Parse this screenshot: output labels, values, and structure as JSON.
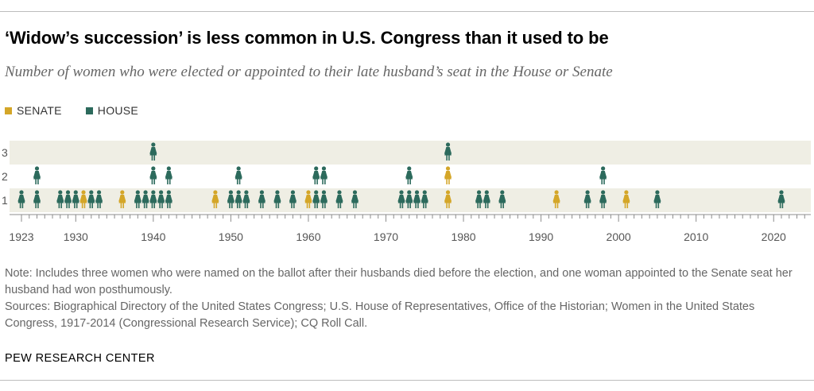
{
  "title": "‘Widow’s succession’ is less common in U.S. Congress than it used to be",
  "subtitle": "Number of women who were elected or appointed to their late husband’s seat in the House or Senate",
  "legend": {
    "senate": {
      "label": "SENATE",
      "color": "#d4a628"
    },
    "house": {
      "label": "HOUSE",
      "color": "#2c6a5c"
    }
  },
  "chart_data": {
    "type": "scatter",
    "title": "‘Widow’s succession’ is less common in U.S. Congress than it used to be",
    "xlabel": "",
    "ylabel": "",
    "xlim": [
      1922,
      2026
    ],
    "ylim": [
      0,
      3
    ],
    "x_ticks": [
      1923,
      1930,
      1940,
      1950,
      1960,
      1970,
      1980,
      1990,
      2000,
      2010,
      2020
    ],
    "y_ticks": [
      1,
      2,
      3
    ],
    "colors": {
      "senate": "#d4a628",
      "house": "#2c6a5c"
    },
    "series": [
      {
        "name": "SENATE",
        "points": [
          {
            "year": 1931,
            "count": 1
          },
          {
            "year": 1936,
            "count": 1
          },
          {
            "year": 1948,
            "count": 1
          },
          {
            "year": 1960,
            "count": 1
          },
          {
            "year": 1978,
            "count": 1
          },
          {
            "year": 1978,
            "count": 2
          },
          {
            "year": 1992,
            "count": 1
          },
          {
            "year": 2001,
            "count": 1
          }
        ]
      },
      {
        "name": "HOUSE",
        "points": [
          {
            "year": 1923,
            "count": 1
          },
          {
            "year": 1925,
            "count": 1
          },
          {
            "year": 1925,
            "count": 2
          },
          {
            "year": 1928,
            "count": 1
          },
          {
            "year": 1929,
            "count": 1
          },
          {
            "year": 1930,
            "count": 1
          },
          {
            "year": 1932,
            "count": 1
          },
          {
            "year": 1933,
            "count": 1
          },
          {
            "year": 1938,
            "count": 1
          },
          {
            "year": 1939,
            "count": 1
          },
          {
            "year": 1940,
            "count": 1
          },
          {
            "year": 1940,
            "count": 2
          },
          {
            "year": 1940,
            "count": 3
          },
          {
            "year": 1941,
            "count": 1
          },
          {
            "year": 1942,
            "count": 1
          },
          {
            "year": 1942,
            "count": 2
          },
          {
            "year": 1950,
            "count": 1
          },
          {
            "year": 1951,
            "count": 1
          },
          {
            "year": 1951,
            "count": 2
          },
          {
            "year": 1952,
            "count": 1
          },
          {
            "year": 1954,
            "count": 1
          },
          {
            "year": 1956,
            "count": 1
          },
          {
            "year": 1958,
            "count": 1
          },
          {
            "year": 1961,
            "count": 1
          },
          {
            "year": 1961,
            "count": 2
          },
          {
            "year": 1962,
            "count": 1
          },
          {
            "year": 1962,
            "count": 2
          },
          {
            "year": 1964,
            "count": 1
          },
          {
            "year": 1966,
            "count": 1
          },
          {
            "year": 1972,
            "count": 1
          },
          {
            "year": 1973,
            "count": 1
          },
          {
            "year": 1973,
            "count": 2
          },
          {
            "year": 1974,
            "count": 1
          },
          {
            "year": 1975,
            "count": 1
          },
          {
            "year": 1978,
            "count": 3
          },
          {
            "year": 1982,
            "count": 1
          },
          {
            "year": 1983,
            "count": 1
          },
          {
            "year": 1985,
            "count": 1
          },
          {
            "year": 1996,
            "count": 1
          },
          {
            "year": 1998,
            "count": 1
          },
          {
            "year": 1998,
            "count": 2
          },
          {
            "year": 2005,
            "count": 1
          },
          {
            "year": 2021,
            "count": 1
          }
        ]
      }
    ]
  },
  "notes": {
    "note": "Note: Includes three women who were named on the ballot after their husbands died before the election, and one woman appointed to the Senate seat her husband had won posthumously.",
    "sources": "Sources: Biographical Directory of the United States Congress; U.S. House of Representatives, Office of the Historian; Women in the United States Congress, 1917-2014 (Congressional Research Service); CQ Roll Call."
  },
  "brand": "PEW RESEARCH CENTER"
}
